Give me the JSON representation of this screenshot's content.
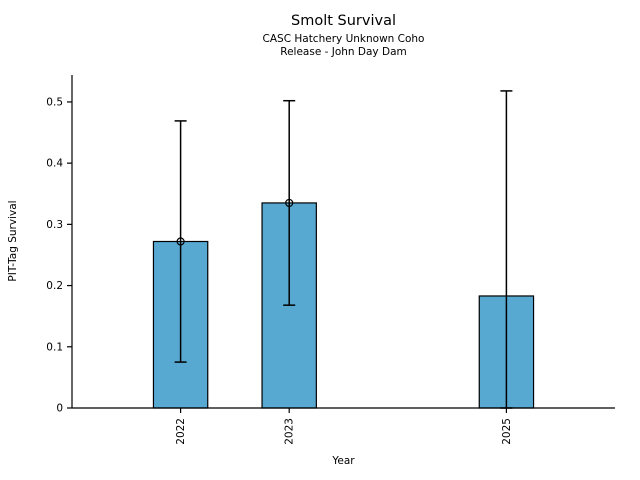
{
  "chart_data": {
    "type": "bar",
    "title": "Smolt Survival",
    "subtitle": [
      "CASC Hatchery Unknown Coho",
      "Release - John Day Dam"
    ],
    "xlabel": "Year",
    "ylabel": "PIT-Tag Survival",
    "categories": [
      "2022",
      "2023",
      "2025"
    ],
    "x_values": [
      2022,
      2023,
      2025
    ],
    "values": [
      0.272,
      0.335,
      0.183
    ],
    "error_low": [
      0.075,
      0.168,
      0.0
    ],
    "error_high": [
      0.469,
      0.502,
      0.518
    ],
    "point_markers": [
      true,
      true,
      false
    ],
    "xlim": [
      2021,
      2026
    ],
    "ylim": [
      0,
      0.544
    ],
    "yticks": [
      0,
      0.1,
      0.2,
      0.3,
      0.4,
      0.5
    ],
    "ytick_labels": [
      "0",
      "0.1",
      "0.2",
      "0.3",
      "0.4",
      "0.5"
    ],
    "bar_width_x_units": 0.5,
    "grid": false,
    "legend": null,
    "colors": {
      "bar_fill": "#58A9D2",
      "bar_edge": "#000000",
      "error_bar": "#000000",
      "axis": "#000000",
      "text": "#000000",
      "background": "#ffffff"
    }
  }
}
